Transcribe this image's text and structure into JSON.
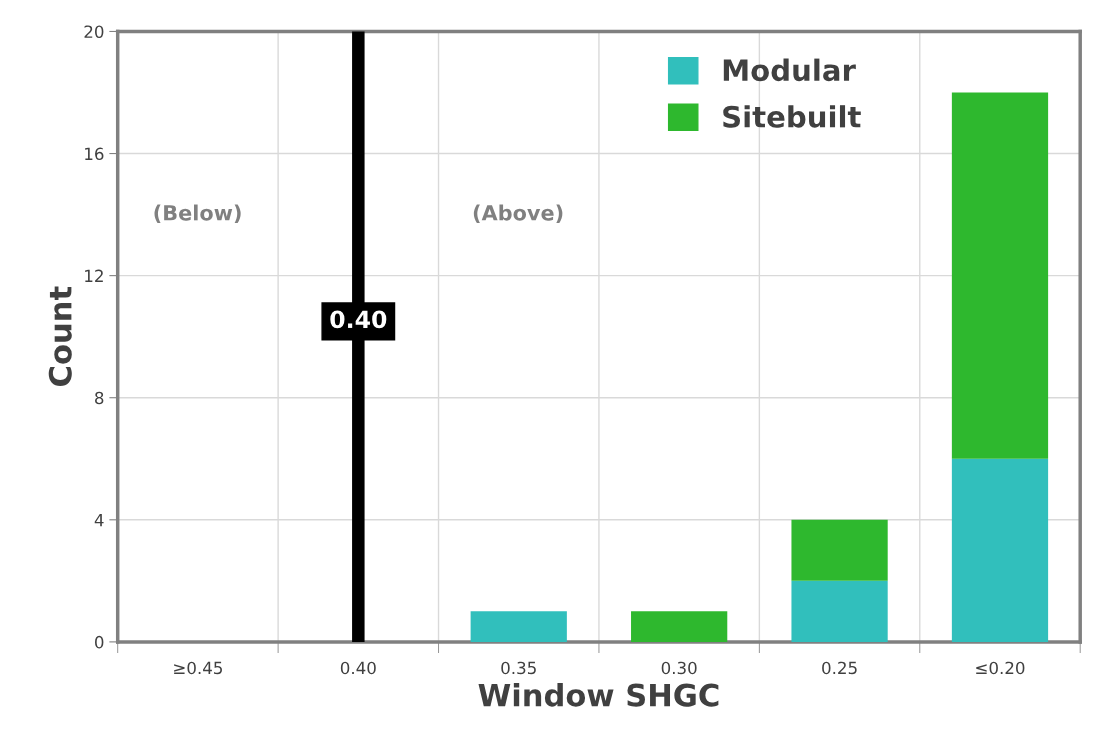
{
  "chart_data": {
    "type": "bar",
    "stacked": true,
    "xlabel": "Window SHGC",
    "ylabel": "Count",
    "x": [
      0.45,
      0.4,
      0.35,
      0.3,
      0.25,
      0.2
    ],
    "series": [
      {
        "name": "Modular",
        "color": "#31bfbc",
        "values": [
          0,
          0,
          1,
          0,
          2,
          6
        ]
      },
      {
        "name": "Sitebuilt",
        "color": "#2eb82e",
        "values": [
          0,
          0,
          0,
          1,
          2,
          12
        ]
      }
    ],
    "xlim": [
      0.475,
      0.175
    ],
    "xticks": [
      {
        "value": 0.45,
        "label": "≥0.45"
      },
      {
        "value": 0.4,
        "label": "0.40"
      },
      {
        "value": 0.35,
        "label": "0.35"
      },
      {
        "value": 0.3,
        "label": "0.30"
      },
      {
        "value": 0.25,
        "label": "0.25"
      },
      {
        "value": 0.2,
        "label": "≤0.20"
      },
      {
        "value": 0.475,
        "label": null
      },
      {
        "value": 0.425,
        "label": null
      },
      {
        "value": 0.375,
        "label": null
      },
      {
        "value": 0.325,
        "label": null
      },
      {
        "value": 0.275,
        "label": null
      },
      {
        "value": 0.225,
        "label": null
      },
      {
        "value": 0.175,
        "label": null
      }
    ],
    "ylim": [
      0,
      20
    ],
    "yticks": [
      0,
      4,
      8,
      12,
      16,
      20
    ],
    "ref_lines": [
      {
        "axis": "x",
        "value": 0.4,
        "label": "0.40",
        "color": "#000000"
      }
    ],
    "annotations": [
      "(Below)",
      "(Above)"
    ],
    "grid": true,
    "legend": "top right"
  }
}
